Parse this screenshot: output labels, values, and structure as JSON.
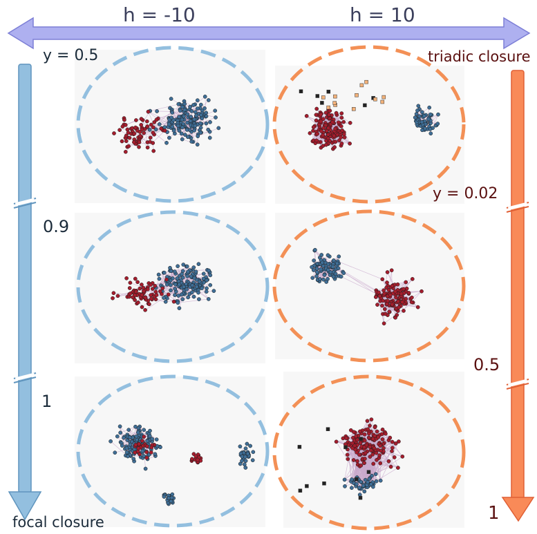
{
  "top_axis": {
    "left_label": "h = -10",
    "right_label": "h = 10",
    "arrow_color": "#aeb0f0"
  },
  "left_axis": {
    "top_label": "y = 0.5",
    "mid_label": "0.9",
    "low_label": "1",
    "bottom_caption": "focal closure",
    "arrow_color": "#93bfdf"
  },
  "right_axis": {
    "top_caption": "triadic closure",
    "top_label": "y = 0.02",
    "mid_label": "0.5",
    "bottom_label": "1",
    "arrow_color": "#f98a58"
  },
  "colors": {
    "node_blue": "#3f6e96",
    "node_red": "#a51d2d",
    "node_orange": "#f3b27a",
    "node_black": "#222222",
    "edge": "#c9a9cc",
    "left_ellipse": "#93bfdf",
    "right_ellipse": "#f39056"
  },
  "networks": [
    {
      "id": "top-left",
      "column": "h = -10",
      "type": "mixed"
    },
    {
      "id": "top-right",
      "column": "h = 10",
      "type": "two-cluster",
      "markers": true
    },
    {
      "id": "middle-left",
      "column": "h = -10",
      "type": "mixed"
    },
    {
      "id": "middle-right",
      "column": "h = 10",
      "type": "two-cluster"
    },
    {
      "id": "bottom-left",
      "column": "h = -10",
      "type": "sparse-clusters"
    },
    {
      "id": "bottom-right",
      "column": "h = 10",
      "type": "dense-mixed",
      "markers": true
    }
  ]
}
